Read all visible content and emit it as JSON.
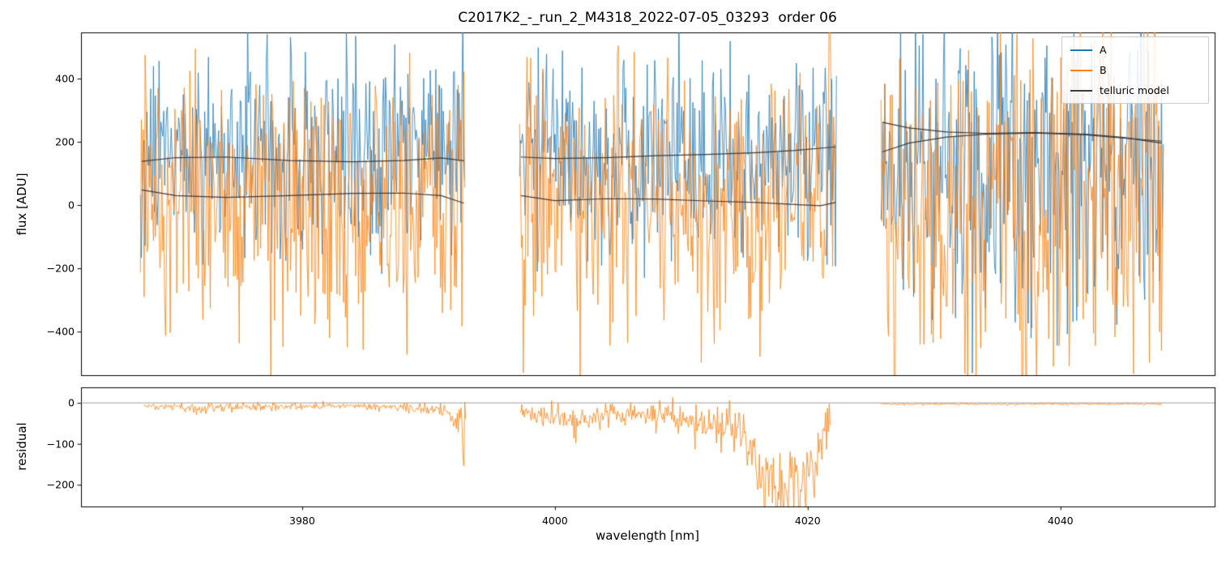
{
  "chart_data": {
    "type": "line",
    "title": "C2017K2_-_run_2_M4318_2022-07-05_03293  order 06",
    "xlabel": "wavelength [nm]",
    "x_range": [
      3962.5,
      4052.2
    ],
    "x_ticks": [
      3980,
      4000,
      4020,
      4040
    ],
    "x_tick_labels": [
      "3980",
      "4000",
      "4020",
      "4040"
    ],
    "colors": {
      "A": "#1f77b4",
      "B": "#ff7f0e",
      "telluric": "#3d3d3d",
      "zero_line": "#888888"
    },
    "legend": [
      {
        "label": "A",
        "color": "#1f77b4"
      },
      {
        "label": "B",
        "color": "#ff7f0e"
      },
      {
        "label": "telluric model",
        "color": "#3d3d3d"
      }
    ],
    "panels": [
      {
        "name": "flux",
        "ylabel": "flux [ADU]",
        "y_range": [
          -538,
          546
        ],
        "y_ticks": [
          -400,
          -200,
          0,
          200,
          400
        ],
        "y_tick_labels": [
          "−400",
          "−200",
          "0",
          "200",
          "400"
        ],
        "segments": [
          {
            "x": [
              3967.2,
              3992.9
            ],
            "A": {
              "mean": 150,
              "sd": 160
            },
            "B": {
              "mean": 10,
              "sd": 215
            }
          },
          {
            "x": [
              3997.2,
              4022.3
            ],
            "A": {
              "mean": 160,
              "sd": 160
            },
            "B": {
              "mean": 5,
              "sd": 215
            }
          },
          {
            "x": [
              4025.8,
              4048.2
            ],
            "A": {
              "mean": 100,
              "sd": 240
            },
            "B": {
              "mean": 0,
              "sd": 290
            }
          }
        ],
        "telluric": [
          [
            [
              3967.3,
              138
            ],
            [
              3970,
              150
            ],
            [
              3974,
              152
            ],
            [
              3979,
              141
            ],
            [
              3984,
              137
            ],
            [
              3988,
              141
            ],
            [
              3991,
              149
            ],
            [
              3992.8,
              140
            ]
          ],
          [
            [
              3967.3,
              48
            ],
            [
              3970,
              30
            ],
            [
              3974,
              24
            ],
            [
              3979,
              30
            ],
            [
              3984,
              37
            ],
            [
              3988,
              38
            ],
            [
              3991,
              30
            ],
            [
              3992.8,
              6
            ]
          ],
          [
            [
              3997.3,
              152
            ],
            [
              4000,
              147
            ],
            [
              4004,
              150
            ],
            [
              4008,
              156
            ],
            [
              4012,
              160
            ],
            [
              4016,
              166
            ],
            [
              4019,
              173
            ],
            [
              4022.2,
              184
            ]
          ],
          [
            [
              3997.3,
              30
            ],
            [
              4000,
              14
            ],
            [
              4004,
              20
            ],
            [
              4008,
              19
            ],
            [
              4012,
              13
            ],
            [
              4016,
              8
            ],
            [
              4019,
              2
            ],
            [
              4021,
              -2
            ],
            [
              4022.2,
              8
            ]
          ],
          [
            [
              4025.9,
              262
            ],
            [
              4028,
              244
            ],
            [
              4031,
              231
            ],
            [
              4034,
              227
            ],
            [
              4038,
              229
            ],
            [
              4042,
              224
            ],
            [
              4045,
              214
            ],
            [
              4048,
              196
            ]
          ],
          [
            [
              4025.9,
              168
            ],
            [
              4028,
              196
            ],
            [
              4031,
              215
            ],
            [
              4034,
              224
            ],
            [
              4038,
              228
            ],
            [
              4042,
              222
            ],
            [
              4045,
              212
            ],
            [
              4048,
              202
            ]
          ]
        ]
      },
      {
        "name": "residual",
        "ylabel": "residual",
        "y_range": [
          -253,
          38
        ],
        "y_ticks": [
          -200,
          -100,
          0
        ],
        "y_tick_labels": [
          "−200",
          "−100",
          "0"
        ],
        "zero_line": true,
        "segments": [
          {
            "x": [
              3967.5,
              3993.0
            ],
            "env": [
              [
                3967.5,
                -4,
                6
              ],
              [
                3972,
                -7,
                14
              ],
              [
                3978,
                -5,
                10
              ],
              [
                3984,
                -4,
                8
              ],
              [
                3988,
                -6,
                12
              ],
              [
                3991,
                -8,
                18
              ],
              [
                3992.3,
                -15,
                45
              ],
              [
                3993.0,
                -25,
                60
              ]
            ]
          },
          {
            "x": [
              3997.3,
              4021.8
            ],
            "env": [
              [
                3997.3,
                -10,
                18
              ],
              [
                3999,
                -18,
                30
              ],
              [
                4001,
                -25,
                45
              ],
              [
                4003,
                -18,
                35
              ],
              [
                4006,
                -12,
                25
              ],
              [
                4009,
                -20,
                40
              ],
              [
                4012,
                -25,
                45
              ],
              [
                4014,
                -30,
                55
              ],
              [
                4015.5,
                -60,
                80
              ],
              [
                4016.5,
                -130,
                110
              ],
              [
                4018,
                -155,
                115
              ],
              [
                4019.5,
                -150,
                115
              ],
              [
                4020.5,
                -90,
                100
              ],
              [
                4021.3,
                -35,
                70
              ],
              [
                4021.8,
                -15,
                40
              ]
            ]
          },
          {
            "x": [
              4025.8,
              4048.0
            ],
            "env": [
              [
                4025.8,
                -1.5,
                3
              ],
              [
                4048.0,
                -1.5,
                3
              ]
            ]
          }
        ]
      }
    ]
  }
}
